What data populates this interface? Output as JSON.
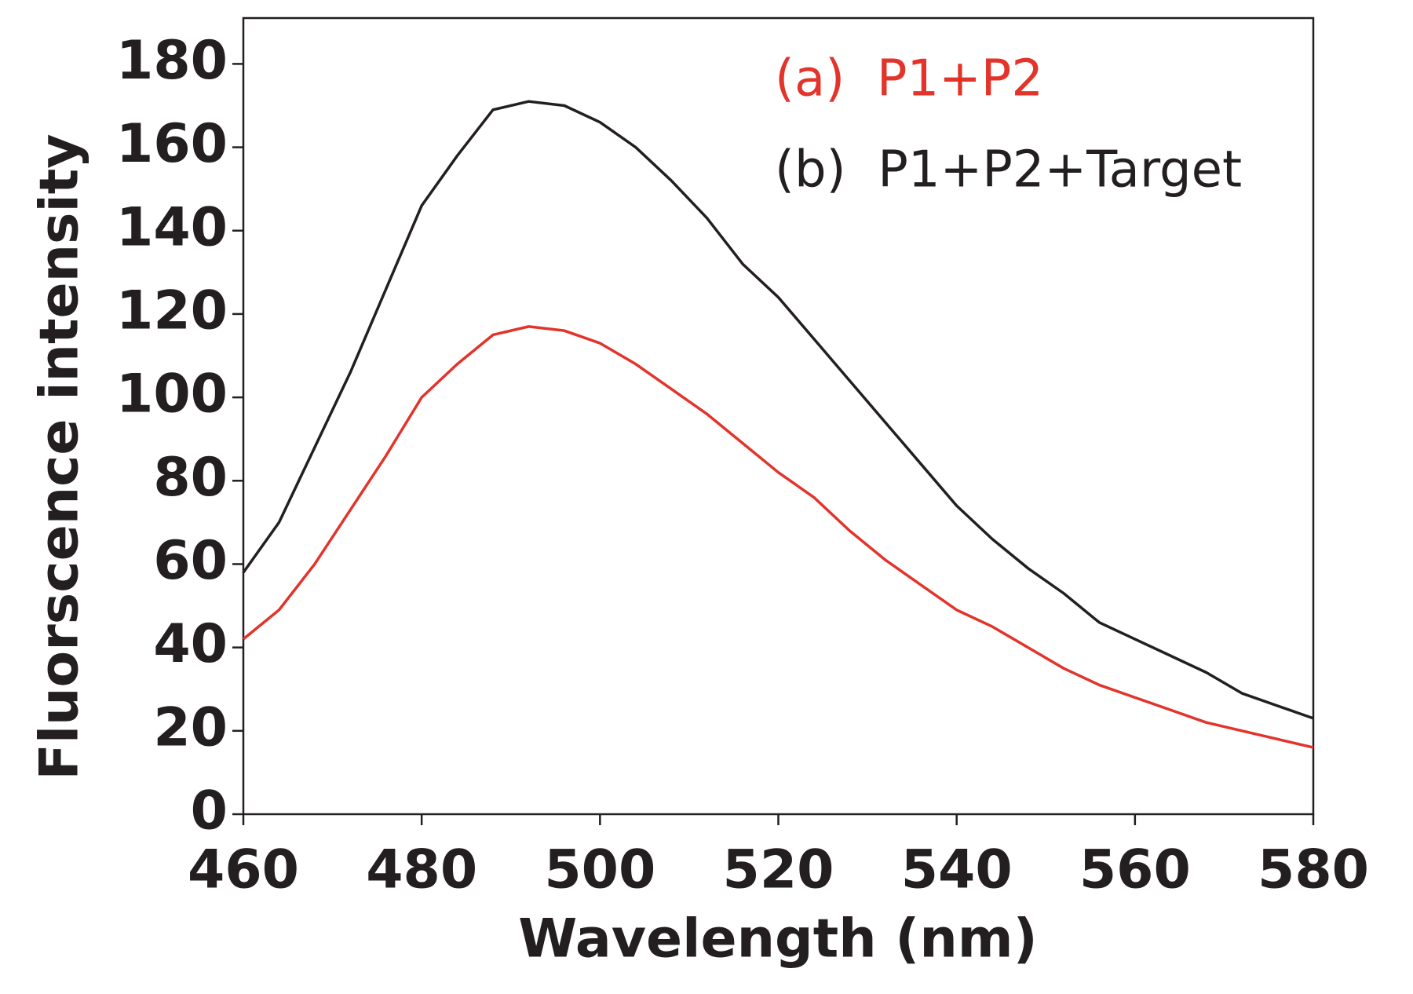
{
  "chart_data": {
    "type": "line",
    "xlabel": "Wavelength (nm)",
    "ylabel": "Fluorscence intensity",
    "x": [
      460,
      464,
      468,
      472,
      476,
      480,
      484,
      488,
      492,
      496,
      500,
      504,
      508,
      512,
      516,
      520,
      524,
      528,
      532,
      536,
      540,
      544,
      548,
      552,
      556,
      560,
      564,
      568,
      572,
      576,
      580
    ],
    "series": [
      {
        "name": "(a)  P1+P2",
        "color": "#e2342b",
        "values": [
          42,
          49,
          60,
          73,
          86,
          100,
          108,
          115,
          117,
          116,
          113,
          108,
          102,
          96,
          89,
          82,
          76,
          68,
          61,
          55,
          49,
          45,
          40,
          35,
          31,
          28,
          25,
          22,
          20,
          18,
          16
        ]
      },
      {
        "name": "(b)  P1+P2+Target",
        "color": "#231f20",
        "values": [
          58,
          70,
          88,
          106,
          126,
          146,
          158,
          169,
          171,
          170,
          166,
          160,
          152,
          143,
          132,
          124,
          114,
          104,
          94,
          84,
          74,
          66,
          59,
          53,
          46,
          42,
          38,
          34,
          29,
          26,
          23
        ]
      }
    ],
    "xlim": [
      460,
      580
    ],
    "xticks": [
      460,
      480,
      500,
      520,
      540,
      560,
      580
    ],
    "ylim": [
      0,
      191
    ],
    "yticks": [
      0,
      20,
      40,
      60,
      80,
      100,
      120,
      140,
      160,
      180
    ],
    "legend": "upper right"
  }
}
